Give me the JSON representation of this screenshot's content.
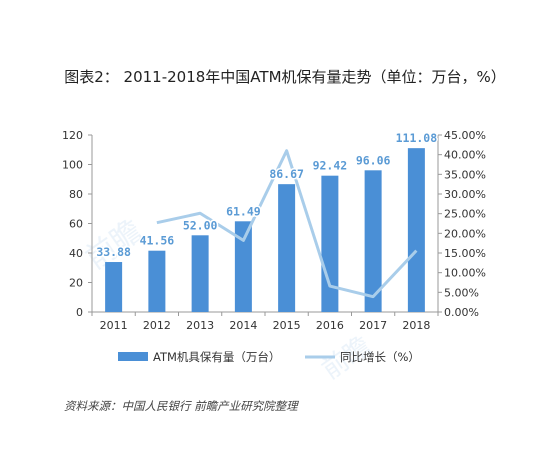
{
  "title": "图表2：  2011-2018年中国ATM机保有量走势（单位：万台，%）",
  "source": "资料来源：中国人民银行 前瞻产业研究院整理",
  "colors": {
    "bar": "#4a8fd6",
    "line": "#a9cdea",
    "label": "#5b9bd5",
    "axis": "#999999"
  },
  "chart_data": {
    "type": "bar",
    "categories": [
      "2011",
      "2012",
      "2013",
      "2014",
      "2015",
      "2016",
      "2017",
      "2018"
    ],
    "series": [
      {
        "name": "ATM机具保有量（万台）",
        "type": "bar",
        "axis": "left",
        "values": [
          33.88,
          41.56,
          52.0,
          61.49,
          86.67,
          92.42,
          96.06,
          111.08
        ],
        "labels": [
          "33.88",
          "41.56",
          "52.00",
          "61.49",
          "86.67",
          "92.42",
          "96.06",
          "111.08"
        ]
      },
      {
        "name": "同比增长（%）",
        "type": "line",
        "axis": "right",
        "values": [
          null,
          22.7,
          25.1,
          18.2,
          41.0,
          6.6,
          3.9,
          15.6
        ]
      }
    ],
    "y_left": {
      "min": 0,
      "max": 120,
      "ticks": [
        "0",
        "20",
        "40",
        "60",
        "80",
        "100",
        "120"
      ]
    },
    "y_right": {
      "min": 0,
      "max": 45,
      "ticks": [
        "0.00%",
        "5.00%",
        "10.00%",
        "15.00%",
        "20.00%",
        "25.00%",
        "30.00%",
        "35.00%",
        "40.00%",
        "45.00%"
      ]
    },
    "legend": "bottom",
    "grid": false
  }
}
